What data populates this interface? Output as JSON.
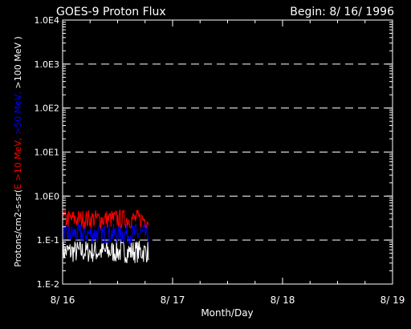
{
  "chart_data": {
    "type": "line",
    "title": "GOES-9 Proton Flux",
    "begin_label": "Begin: 8/ 16/ 1996",
    "xlabel": "Month/Day",
    "ylabel_parts": [
      {
        "text": "Protons/cm2-s-sr(",
        "color": "#ffffff"
      },
      {
        "text": "E >10 MeV, ",
        "color": "#ff0000"
      },
      {
        "text": ">50 MeV, ",
        "color": "#0000ff"
      },
      {
        "text": ">100 MeV )",
        "color": "#ffffff"
      }
    ],
    "y_scale": "log",
    "ylim": [
      0.01,
      10000
    ],
    "y_ticks": [
      {
        "value": 0.01,
        "label": "1.E-2"
      },
      {
        "value": 0.1,
        "label": "1.E-1"
      },
      {
        "value": 1,
        "label": "1.0E0"
      },
      {
        "value": 10,
        "label": "1.0E1"
      },
      {
        "value": 100,
        "label": "1.0E2"
      },
      {
        "value": 1000,
        "label": "1.0E3"
      },
      {
        "value": 10000,
        "label": "1.0E4"
      }
    ],
    "xlim": [
      0,
      3
    ],
    "x_ticks": [
      {
        "value": 0,
        "label": "8/ 16"
      },
      {
        "value": 1,
        "label": "8/ 17"
      },
      {
        "value": 2,
        "label": "8/ 18"
      },
      {
        "value": 3,
        "label": "8/ 19"
      }
    ],
    "grid": "dashed horizontal lines at decades",
    "series": [
      {
        "name": "E >10 MeV",
        "color": "#ff0000",
        "range": [
          0.18,
          0.5
        ]
      },
      {
        "name": ">50 MeV",
        "color": "#0000ff",
        "range": [
          0.08,
          0.24
        ]
      },
      {
        "name": ">100 MeV",
        "color": "#ffffff",
        "range": [
          0.03,
          0.1
        ]
      }
    ],
    "data_span_days": [
      0,
      0.78
    ]
  }
}
